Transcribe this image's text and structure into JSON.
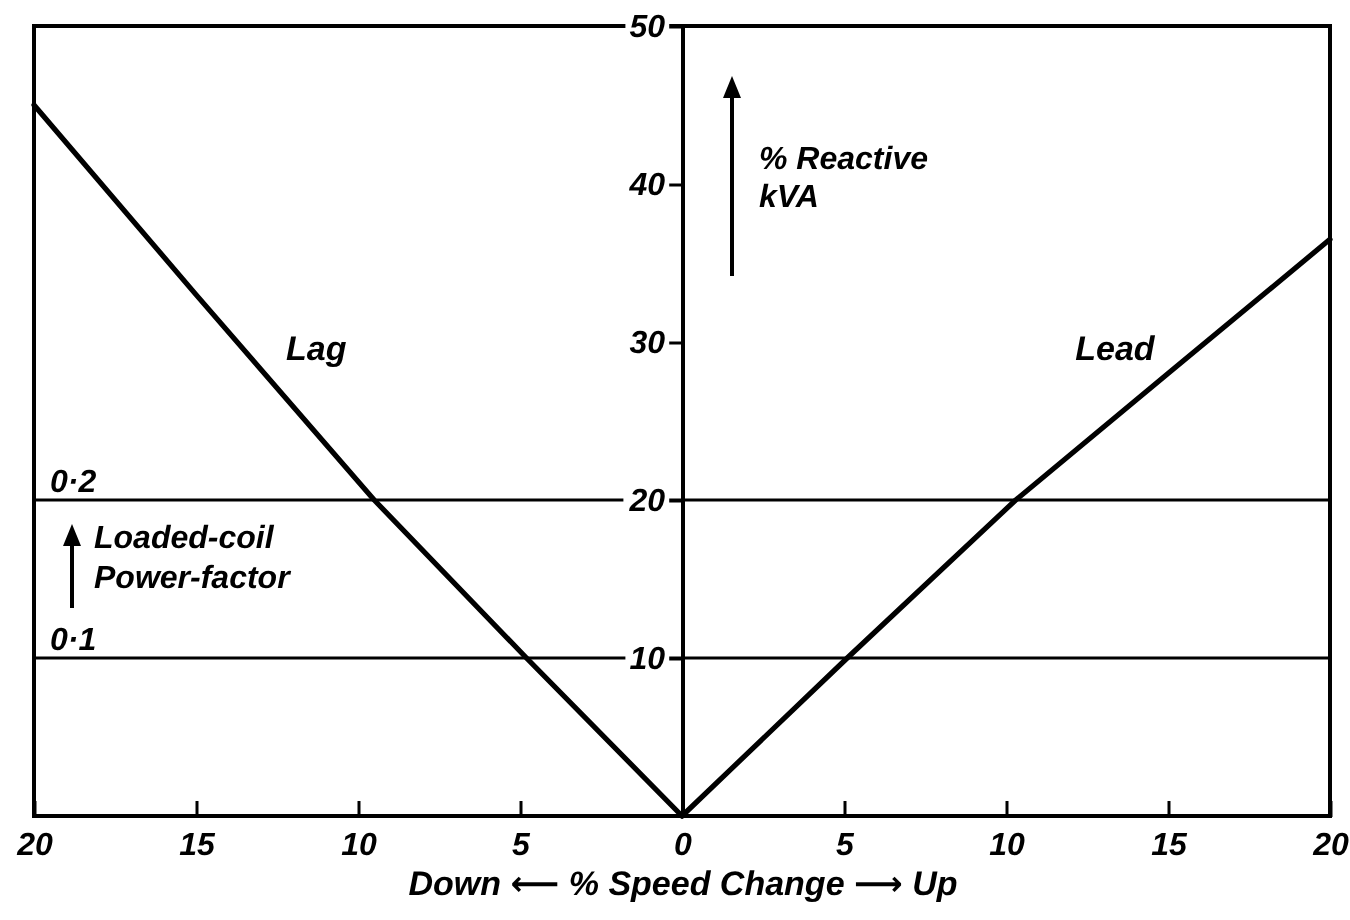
{
  "chart_data": {
    "type": "line",
    "xlabel": "Down ⟵ % Speed Change ⟶ Up",
    "ylabel": "% Reactive kVA",
    "series": [
      {
        "name": "Lag",
        "color": "#000000",
        "x": [
          -20,
          -15,
          -9.5,
          -4.8,
          0
        ],
        "values": [
          45,
          33,
          20,
          10,
          0
        ]
      },
      {
        "name": "Lead",
        "color": "#000000",
        "x": [
          0,
          5.1,
          10.3,
          15,
          20
        ],
        "values": [
          0,
          10,
          20,
          28,
          36.5
        ]
      }
    ],
    "xlim": [
      -20,
      20
    ],
    "xticks": [
      {
        "value": -20,
        "label": "20"
      },
      {
        "value": -15,
        "label": "15"
      },
      {
        "value": -10,
        "label": "10"
      },
      {
        "value": -5,
        "label": "5"
      },
      0,
      5,
      10,
      15,
      20
    ],
    "ylim": [
      0,
      50
    ],
    "yticks": [
      10,
      20,
      30,
      40,
      50
    ],
    "ref_lines": [
      {
        "axis": "y",
        "value": 20
      },
      {
        "axis": "y",
        "value": 10
      }
    ],
    "annotations": [
      {
        "text": "0·2",
        "x": -20,
        "y": 20
      },
      {
        "text": "0·1",
        "x": -20,
        "y": 10
      },
      "Loaded-coil Power-factor"
    ],
    "line_style": "solid",
    "marker": "none"
  }
}
